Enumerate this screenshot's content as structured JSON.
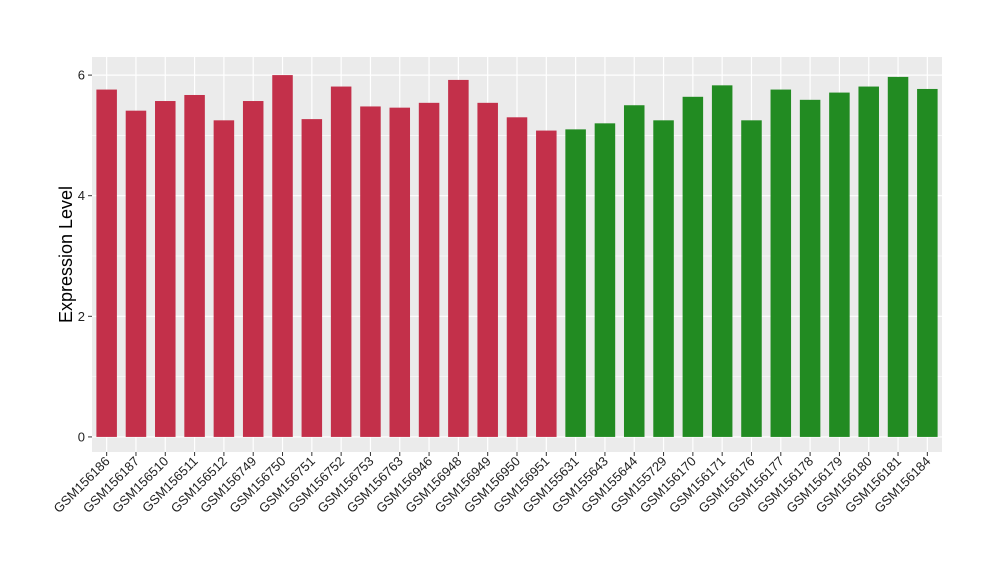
{
  "chart_data": {
    "type": "bar",
    "title": "",
    "xlabel": "",
    "ylabel": "Expression Level",
    "ylim": [
      -0.25,
      6.3
    ],
    "yticks": [
      0,
      2,
      4,
      6
    ],
    "grid": true,
    "legend": "none",
    "colors": {
      "group1": "#C3304A",
      "group2": "#228B22",
      "panel": "#EBEBEB",
      "grid": "#FFFFFF"
    },
    "categories": [
      "GSM156186",
      "GSM156187",
      "GSM156510",
      "GSM156511",
      "GSM156512",
      "GSM156749",
      "GSM156750",
      "GSM156751",
      "GSM156752",
      "GSM156753",
      "GSM156763",
      "GSM156946",
      "GSM156948",
      "GSM156949",
      "GSM156950",
      "GSM156951",
      "GSM155631",
      "GSM155643",
      "GSM155644",
      "GSM155729",
      "GSM156170",
      "GSM156171",
      "GSM156176",
      "GSM156177",
      "GSM156178",
      "GSM156179",
      "GSM156180",
      "GSM156181",
      "GSM156184"
    ],
    "values": [
      5.76,
      5.41,
      5.57,
      5.67,
      5.25,
      5.57,
      6.0,
      5.27,
      5.81,
      5.48,
      5.46,
      5.54,
      5.92,
      5.54,
      5.3,
      5.08,
      5.1,
      5.2,
      5.5,
      5.25,
      5.64,
      5.83,
      5.25,
      5.76,
      5.59,
      5.71,
      5.81,
      5.97,
      5.77
    ],
    "groups": [
      1,
      1,
      1,
      1,
      1,
      1,
      1,
      1,
      1,
      1,
      1,
      1,
      1,
      1,
      1,
      1,
      2,
      2,
      2,
      2,
      2,
      2,
      2,
      2,
      2,
      2,
      2,
      2,
      2
    ]
  }
}
